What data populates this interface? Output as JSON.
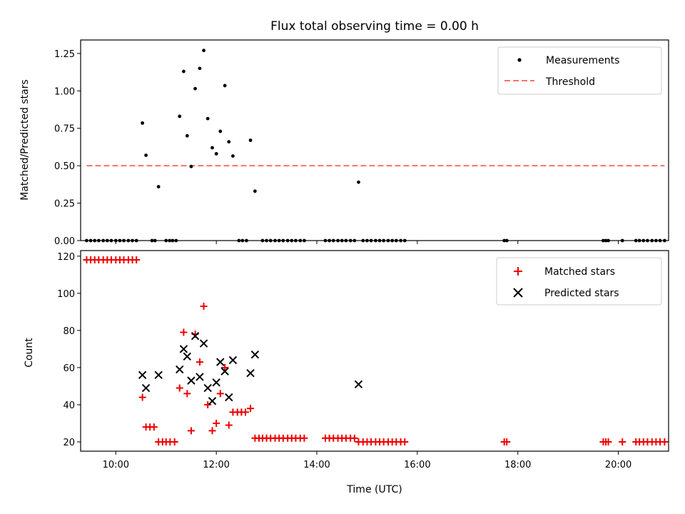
{
  "chart_data": [
    {
      "type": "scatter",
      "title": "Flux total observing time = 0.00 h",
      "xlabel": "",
      "ylabel": "Matched/Predicted stars",
      "xlim": [
        9.3,
        21.0
      ],
      "ylim": [
        0,
        1.34
      ],
      "yticks": [
        0.0,
        0.25,
        0.5,
        0.75,
        1.0,
        1.25
      ],
      "ytick_labels": [
        "0.00",
        "0.25",
        "0.50",
        "0.75",
        "1.00",
        "1.25"
      ],
      "legend": {
        "position": "top-right",
        "entries": [
          "Measurements",
          "Threshold"
        ]
      },
      "series": [
        {
          "name": "Measurements",
          "marker": "dot",
          "color": "#000000",
          "points": [
            [
              9.42,
              0
            ],
            [
              9.5,
              0
            ],
            [
              9.58,
              0
            ],
            [
              9.66,
              0
            ],
            [
              9.75,
              0
            ],
            [
              9.83,
              0
            ],
            [
              9.91,
              0
            ],
            [
              10.0,
              0
            ],
            [
              10.08,
              0
            ],
            [
              10.16,
              0
            ],
            [
              10.25,
              0
            ],
            [
              10.33,
              0
            ],
            [
              10.41,
              0
            ],
            [
              10.53,
              0.785
            ],
            [
              10.6,
              0.57
            ],
            [
              10.72,
              0
            ],
            [
              10.78,
              0
            ],
            [
              10.85,
              0.36
            ],
            [
              11.0,
              0
            ],
            [
              11.07,
              0
            ],
            [
              11.13,
              0
            ],
            [
              11.2,
              0
            ],
            [
              11.27,
              0.83
            ],
            [
              11.35,
              1.13
            ],
            [
              11.42,
              0.7
            ],
            [
              11.5,
              0.495
            ],
            [
              11.58,
              1.015
            ],
            [
              11.67,
              1.15
            ],
            [
              11.75,
              1.27
            ],
            [
              11.83,
              0.815
            ],
            [
              11.92,
              0.62
            ],
            [
              12.0,
              0.58
            ],
            [
              12.08,
              0.73
            ],
            [
              12.17,
              1.035
            ],
            [
              12.25,
              0.66
            ],
            [
              12.33,
              0.565
            ],
            [
              12.45,
              0
            ],
            [
              12.52,
              0
            ],
            [
              12.6,
              0
            ],
            [
              12.68,
              0.67
            ],
            [
              12.77,
              0.33
            ],
            [
              12.92,
              0
            ],
            [
              13.0,
              0
            ],
            [
              13.08,
              0
            ],
            [
              13.17,
              0
            ],
            [
              13.25,
              0
            ],
            [
              13.33,
              0
            ],
            [
              13.42,
              0
            ],
            [
              13.5,
              0
            ],
            [
              13.58,
              0
            ],
            [
              13.67,
              0
            ],
            [
              13.75,
              0
            ],
            [
              14.17,
              0
            ],
            [
              14.25,
              0
            ],
            [
              14.33,
              0
            ],
            [
              14.42,
              0
            ],
            [
              14.5,
              0
            ],
            [
              14.58,
              0
            ],
            [
              14.67,
              0
            ],
            [
              14.75,
              0
            ],
            [
              14.83,
              0.39
            ],
            [
              14.92,
              0
            ],
            [
              15.0,
              0
            ],
            [
              15.08,
              0
            ],
            [
              15.17,
              0
            ],
            [
              15.25,
              0
            ],
            [
              15.33,
              0
            ],
            [
              15.42,
              0
            ],
            [
              15.5,
              0
            ],
            [
              15.58,
              0
            ],
            [
              15.67,
              0
            ],
            [
              15.75,
              0
            ],
            [
              17.73,
              0
            ],
            [
              17.78,
              0
            ],
            [
              19.7,
              0
            ],
            [
              19.75,
              0
            ],
            [
              19.8,
              0
            ],
            [
              20.08,
              0
            ],
            [
              20.35,
              0
            ],
            [
              20.42,
              0
            ],
            [
              20.5,
              0
            ],
            [
              20.58,
              0
            ],
            [
              20.67,
              0
            ],
            [
              20.75,
              0
            ],
            [
              20.83,
              0
            ],
            [
              20.92,
              0
            ]
          ]
        },
        {
          "name": "Threshold",
          "style": "dashed",
          "color": "#ff7070",
          "points": [
            [
              9.42,
              0.5
            ],
            [
              20.92,
              0.5
            ]
          ]
        }
      ]
    },
    {
      "type": "scatter",
      "title": "",
      "xlabel": "Time (UTC)",
      "ylabel": "Count",
      "xlim": [
        9.3,
        21.0
      ],
      "ylim": [
        15,
        123
      ],
      "yticks": [
        20,
        40,
        60,
        80,
        100,
        120
      ],
      "ytick_labels": [
        "20",
        "40",
        "60",
        "80",
        "100",
        "120"
      ],
      "xticks": [
        10,
        12,
        14,
        16,
        18,
        20
      ],
      "xtick_labels": [
        "10:00",
        "12:00",
        "14:00",
        "16:00",
        "18:00",
        "20:00"
      ],
      "legend": {
        "position": "top-right",
        "entries": [
          "Matched stars",
          "Predicted stars"
        ]
      },
      "series": [
        {
          "name": "Matched stars",
          "marker": "plus",
          "color": "#ee0000",
          "points": [
            [
              9.42,
              118
            ],
            [
              9.5,
              118
            ],
            [
              9.58,
              118
            ],
            [
              9.66,
              118
            ],
            [
              9.75,
              118
            ],
            [
              9.83,
              118
            ],
            [
              9.91,
              118
            ],
            [
              10.0,
              118
            ],
            [
              10.08,
              118
            ],
            [
              10.16,
              118
            ],
            [
              10.25,
              118
            ],
            [
              10.33,
              118
            ],
            [
              10.41,
              118
            ],
            [
              10.53,
              44
            ],
            [
              10.6,
              28
            ],
            [
              10.68,
              28
            ],
            [
              10.76,
              28
            ],
            [
              10.85,
              20
            ],
            [
              10.93,
              20
            ],
            [
              11.0,
              20
            ],
            [
              11.08,
              20
            ],
            [
              11.17,
              20
            ],
            [
              11.27,
              49
            ],
            [
              11.35,
              79
            ],
            [
              11.42,
              46
            ],
            [
              11.5,
              26
            ],
            [
              11.58,
              78
            ],
            [
              11.67,
              63
            ],
            [
              11.75,
              93
            ],
            [
              11.83,
              40
            ],
            [
              11.92,
              26
            ],
            [
              12.0,
              30
            ],
            [
              12.08,
              46
            ],
            [
              12.17,
              60
            ],
            [
              12.25,
              29
            ],
            [
              12.33,
              36
            ],
            [
              12.42,
              36
            ],
            [
              12.5,
              36
            ],
            [
              12.58,
              36
            ],
            [
              12.68,
              38
            ],
            [
              12.77,
              22
            ],
            [
              12.85,
              22
            ],
            [
              12.92,
              22
            ],
            [
              13.0,
              22
            ],
            [
              13.08,
              22
            ],
            [
              13.17,
              22
            ],
            [
              13.25,
              22
            ],
            [
              13.33,
              22
            ],
            [
              13.42,
              22
            ],
            [
              13.5,
              22
            ],
            [
              13.58,
              22
            ],
            [
              13.67,
              22
            ],
            [
              13.75,
              22
            ],
            [
              14.17,
              22
            ],
            [
              14.25,
              22
            ],
            [
              14.33,
              22
            ],
            [
              14.42,
              22
            ],
            [
              14.5,
              22
            ],
            [
              14.58,
              22
            ],
            [
              14.67,
              22
            ],
            [
              14.75,
              22
            ],
            [
              14.83,
              20
            ],
            [
              14.92,
              20
            ],
            [
              15.0,
              20
            ],
            [
              15.08,
              20
            ],
            [
              15.17,
              20
            ],
            [
              15.25,
              20
            ],
            [
              15.33,
              20
            ],
            [
              15.42,
              20
            ],
            [
              15.5,
              20
            ],
            [
              15.58,
              20
            ],
            [
              15.67,
              20
            ],
            [
              15.75,
              20
            ],
            [
              17.73,
              20
            ],
            [
              17.78,
              20
            ],
            [
              19.7,
              20
            ],
            [
              19.75,
              20
            ],
            [
              19.8,
              20
            ],
            [
              20.08,
              20
            ],
            [
              20.35,
              20
            ],
            [
              20.42,
              20
            ],
            [
              20.5,
              20
            ],
            [
              20.58,
              20
            ],
            [
              20.67,
              20
            ],
            [
              20.75,
              20
            ],
            [
              20.83,
              20
            ],
            [
              20.92,
              20
            ]
          ]
        },
        {
          "name": "Predicted stars",
          "marker": "x",
          "color": "#000000",
          "points": [
            [
              10.53,
              56
            ],
            [
              10.6,
              49
            ],
            [
              10.85,
              56
            ],
            [
              11.27,
              59
            ],
            [
              11.35,
              70
            ],
            [
              11.42,
              66
            ],
            [
              11.5,
              53
            ],
            [
              11.58,
              77
            ],
            [
              11.67,
              55
            ],
            [
              11.75,
              73
            ],
            [
              11.83,
              49
            ],
            [
              11.92,
              42
            ],
            [
              12.0,
              52
            ],
            [
              12.08,
              63
            ],
            [
              12.17,
              58
            ],
            [
              12.25,
              44
            ],
            [
              12.33,
              64
            ],
            [
              12.68,
              57
            ],
            [
              12.77,
              67
            ],
            [
              14.83,
              51
            ]
          ]
        }
      ]
    }
  ]
}
